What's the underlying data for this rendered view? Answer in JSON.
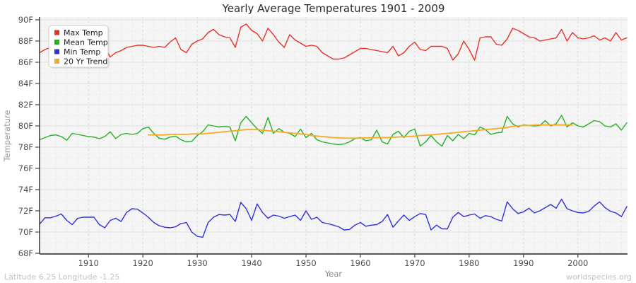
{
  "title": "Yearly Average Temperatures 1901 - 2009",
  "footer": {
    "left": "Latitude 6.25 Longitude -1.25",
    "right": "worldspecies.org"
  },
  "y_axis": {
    "label": "Temperature",
    "tick_labels": [
      "68F",
      "70F",
      "72F",
      "74F",
      "76F",
      "78F",
      "80F",
      "82F",
      "84F",
      "86F",
      "88F",
      "90F"
    ],
    "tick_values": [
      68,
      70,
      72,
      74,
      76,
      78,
      80,
      82,
      84,
      86,
      88,
      90
    ]
  },
  "x_axis": {
    "label": "Year",
    "tick_labels": [
      "1910",
      "1920",
      "1930",
      "1940",
      "1950",
      "1960",
      "1970",
      "1980",
      "1990",
      "2000"
    ],
    "tick_values": [
      1910,
      1920,
      1930,
      1940,
      1950,
      1960,
      1970,
      1980,
      1990,
      2000
    ]
  },
  "legend": {
    "items": [
      {
        "label": "Max Temp",
        "color": "#e53126"
      },
      {
        "label": "Mean Temp",
        "color": "#22b322"
      },
      {
        "label": "Min Temp",
        "color": "#3030d9"
      },
      {
        "label": "20 Yr Trend",
        "color": "#f7a928"
      }
    ]
  },
  "chart_data": {
    "type": "line",
    "title": "Yearly Average Temperatures 1901 - 2009",
    "xlabel": "Year",
    "ylabel": "Temperature",
    "xlim": [
      1901,
      2009
    ],
    "ylim": [
      68,
      90
    ],
    "grid": true,
    "legend_position": "top-left",
    "unit": "F",
    "series": [
      {
        "name": "Max Temp",
        "color": "#e53126",
        "x_start": 1901,
        "values": [
          86.9,
          87.2,
          87.4,
          87.1,
          87.5,
          87.3,
          87.0,
          87.4,
          87.6,
          87.3,
          87.1,
          87.5,
          87.4,
          86.5,
          86.9,
          87.1,
          87.4,
          87.5,
          87.6,
          87.6,
          87.5,
          87.4,
          87.5,
          87.4,
          87.9,
          88.3,
          87.2,
          86.9,
          87.7,
          88.0,
          88.2,
          88.8,
          89.1,
          88.6,
          88.4,
          88.3,
          87.4,
          89.3,
          89.6,
          89.0,
          88.7,
          88.0,
          89.2,
          88.6,
          87.9,
          87.4,
          88.6,
          88.1,
          87.8,
          87.5,
          87.6,
          87.5,
          86.9,
          86.6,
          86.3,
          86.3,
          86.4,
          86.7,
          87.0,
          87.3,
          87.3,
          87.2,
          87.1,
          87.0,
          86.9,
          87.5,
          86.6,
          86.9,
          87.5,
          87.9,
          87.2,
          87.1,
          87.5,
          87.5,
          87.5,
          87.3,
          86.2,
          86.8,
          88.0,
          87.2,
          86.2,
          88.3,
          88.4,
          88.4,
          87.7,
          87.6,
          88.2,
          89.2,
          89.0,
          88.7,
          88.4,
          88.3,
          88.0,
          88.1,
          88.2,
          88.3,
          89.1,
          88.0,
          88.8,
          88.3,
          88.2,
          88.3,
          88.5,
          88.1,
          88.3,
          88.0,
          88.8,
          88.1,
          88.3
        ]
      },
      {
        "name": "Mean Temp",
        "color": "#22b322",
        "x_start": 1901,
        "values": [
          78.7,
          78.9,
          79.1,
          79.15,
          79.0,
          78.65,
          79.3,
          79.2,
          79.1,
          79.0,
          78.95,
          78.8,
          79.0,
          79.45,
          78.8,
          79.2,
          79.3,
          79.2,
          79.3,
          79.75,
          79.9,
          79.3,
          78.85,
          78.75,
          78.95,
          79.05,
          78.7,
          78.5,
          78.55,
          79.1,
          79.45,
          80.1,
          80.0,
          79.9,
          79.95,
          79.9,
          78.6,
          80.3,
          80.9,
          80.3,
          79.75,
          79.3,
          80.8,
          79.3,
          79.75,
          79.4,
          79.3,
          79.0,
          79.7,
          78.9,
          79.3,
          78.7,
          78.5,
          78.4,
          78.3,
          78.25,
          78.3,
          78.5,
          78.8,
          78.9,
          78.6,
          78.7,
          79.6,
          78.5,
          78.3,
          79.2,
          79.5,
          78.9,
          79.5,
          79.7,
          78.1,
          78.5,
          79.1,
          78.5,
          78.1,
          79.1,
          78.6,
          79.2,
          78.8,
          79.3,
          79.15,
          79.9,
          79.65,
          79.2,
          79.35,
          79.4,
          80.9,
          80.2,
          79.9,
          80.1,
          80.05,
          80.0,
          80.05,
          80.5,
          80.0,
          80.2,
          81.0,
          79.9,
          80.3,
          80.0,
          79.9,
          80.2,
          80.5,
          80.4,
          80.0,
          79.9,
          80.2,
          79.6,
          80.3
        ]
      },
      {
        "name": "Min Temp",
        "color": "#3030d9",
        "x_start": 1901,
        "values": [
          70.75,
          71.35,
          71.35,
          71.5,
          71.7,
          71.1,
          70.7,
          71.3,
          71.4,
          71.4,
          71.4,
          70.7,
          70.4,
          71.1,
          71.3,
          71.0,
          71.85,
          72.2,
          72.15,
          71.8,
          71.4,
          70.9,
          70.6,
          70.45,
          70.4,
          70.5,
          70.8,
          70.9,
          70.0,
          69.6,
          69.5,
          70.9,
          71.4,
          71.65,
          71.6,
          71.65,
          71.0,
          72.8,
          72.2,
          71.1,
          72.65,
          71.85,
          71.3,
          71.6,
          71.5,
          71.3,
          71.45,
          71.6,
          71.1,
          72.0,
          71.2,
          71.4,
          70.9,
          70.8,
          70.65,
          70.5,
          70.2,
          70.25,
          70.65,
          70.9,
          70.55,
          70.65,
          70.7,
          71.0,
          71.65,
          70.45,
          71.05,
          71.6,
          71.1,
          71.45,
          71.75,
          71.65,
          70.2,
          70.65,
          70.3,
          70.3,
          71.4,
          71.85,
          71.45,
          71.6,
          71.7,
          71.3,
          71.55,
          71.45,
          71.2,
          71.05,
          72.85,
          72.2,
          71.75,
          71.9,
          72.25,
          71.8,
          72.0,
          72.3,
          72.6,
          72.25,
          73.1,
          72.2,
          72.0,
          71.85,
          71.8,
          71.95,
          72.45,
          72.85,
          72.3,
          71.95,
          71.8,
          71.45,
          72.4
        ]
      },
      {
        "name": "20 Yr Trend",
        "color": "#f7a928",
        "x_start": 1921,
        "values": [
          79.15,
          79.15,
          79.15,
          79.15,
          79.2,
          79.2,
          79.2,
          79.2,
          79.25,
          79.25,
          79.25,
          79.3,
          79.35,
          79.4,
          79.45,
          79.5,
          79.55,
          79.6,
          79.65,
          79.65,
          79.65,
          79.6,
          79.55,
          79.5,
          79.45,
          79.4,
          79.35,
          79.3,
          79.25,
          79.2,
          79.1,
          79.05,
          79.0,
          78.95,
          78.9,
          78.87,
          78.85,
          78.85,
          78.85,
          78.85,
          78.87,
          78.87,
          78.9,
          78.9,
          78.9,
          78.93,
          78.95,
          79.0,
          79.0,
          79.05,
          79.1,
          79.13,
          79.15,
          79.2,
          79.25,
          79.3,
          79.35,
          79.4,
          79.45,
          79.5,
          79.55,
          79.6,
          79.65,
          79.7,
          79.75,
          79.8,
          79.85,
          79.95,
          80.0,
          80.05,
          80.05,
          80.08,
          80.1,
          80.1,
          80.1,
          80.1,
          80.1,
          80.1,
          80.1
        ]
      }
    ]
  },
  "style": {
    "plot_bg": "#f5f5f5",
    "grid_major": "#e0e0e0",
    "grid_minor": "#e9e9e9",
    "grid_decade": "#d9d9d9",
    "axis_color": "#444444",
    "tick_label_color": "#4d4d4d",
    "axis_title_color": "#999999",
    "title_color": "#2b2b2b",
    "footer_color": "#c2c2c2",
    "legend_border": "#cccccc",
    "legend_text": "#222222"
  }
}
